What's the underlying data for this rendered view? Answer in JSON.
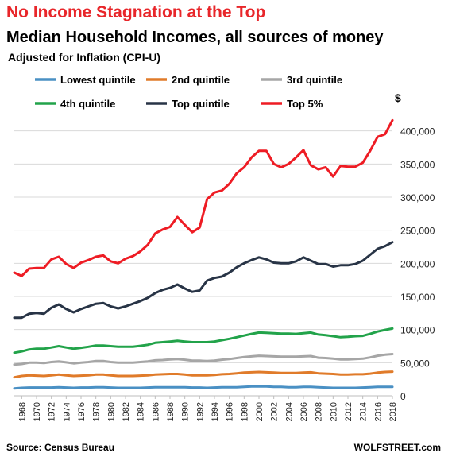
{
  "page": {
    "title": "No Income Stagnation at the Top",
    "subtitle": "Median Household Incomes, all sources of money",
    "subtitle2": "Adjusted for Inflation (CPI-U)",
    "source": "Source: Census Bureau",
    "brand": "WOLFSTREET.com"
  },
  "chart_data": {
    "type": "line",
    "title": "Median Household Incomes, all sources of money",
    "subtitle": "Adjusted for Inflation (CPI-U)",
    "ylabel": "$",
    "ylim": [
      0,
      420000
    ],
    "yticks": [
      0,
      50000,
      100000,
      150000,
      200000,
      250000,
      300000,
      350000,
      400000
    ],
    "ytick_labels": [
      "0",
      "50,000",
      "100,000",
      "150,000",
      "200,000",
      "250,000",
      "300,000",
      "350,000",
      "400,000"
    ],
    "xlim": [
      1967,
      2018
    ],
    "xticks": [
      1968,
      1970,
      1972,
      1974,
      1976,
      1978,
      1980,
      1982,
      1984,
      1986,
      1988,
      1990,
      1992,
      1994,
      1996,
      1998,
      2000,
      2002,
      2004,
      2006,
      2008,
      2010,
      2012,
      2014,
      2016,
      2018
    ],
    "grid": true,
    "legend_position": "top",
    "x": [
      1967,
      1968,
      1969,
      1970,
      1971,
      1972,
      1973,
      1974,
      1975,
      1976,
      1977,
      1978,
      1979,
      1980,
      1981,
      1982,
      1983,
      1984,
      1985,
      1986,
      1987,
      1988,
      1989,
      1990,
      1991,
      1992,
      1993,
      1994,
      1995,
      1996,
      1997,
      1998,
      1999,
      2000,
      2001,
      2002,
      2003,
      2004,
      2005,
      2006,
      2007,
      2008,
      2009,
      2010,
      2011,
      2012,
      2013,
      2014,
      2015,
      2016,
      2017,
      2018
    ],
    "series": [
      {
        "name": "Lowest quintile",
        "color": "#4a90c4",
        "values": [
          11000,
          12000,
          12500,
          12500,
          12500,
          12500,
          13000,
          12500,
          12000,
          12500,
          12500,
          13000,
          13000,
          12500,
          12000,
          12000,
          12000,
          12000,
          12500,
          13000,
          13000,
          13000,
          13000,
          13000,
          12500,
          12500,
          12000,
          12500,
          13000,
          13000,
          13000,
          13500,
          14000,
          14000,
          14000,
          13500,
          13500,
          13000,
          13000,
          13500,
          13500,
          13000,
          12500,
          12000,
          12000,
          12000,
          12000,
          12500,
          13000,
          13500,
          13500,
          13500
        ]
      },
      {
        "name": "2nd quintile",
        "color": "#e07b2a",
        "values": [
          28000,
          30000,
          31000,
          30500,
          30000,
          31000,
          32000,
          31000,
          30000,
          30500,
          31000,
          32000,
          32000,
          31000,
          30000,
          30000,
          30000,
          30500,
          31000,
          32000,
          32500,
          33000,
          33000,
          32000,
          31000,
          31000,
          31000,
          31500,
          32500,
          33000,
          34000,
          35000,
          35500,
          36000,
          35500,
          35000,
          34500,
          34500,
          34500,
          35000,
          35500,
          34000,
          33500,
          33000,
          32000,
          32000,
          32500,
          32500,
          33500,
          35000,
          36000,
          36500
        ]
      },
      {
        "name": "3rd quintile",
        "color": "#a6a6a6",
        "values": [
          47000,
          48000,
          50000,
          50000,
          49500,
          51000,
          52000,
          50500,
          49000,
          50000,
          51000,
          52500,
          52500,
          51000,
          50000,
          50000,
          50000,
          51000,
          52000,
          53500,
          54000,
          55000,
          55500,
          54500,
          53000,
          53000,
          52500,
          53000,
          54500,
          55500,
          57000,
          58500,
          59500,
          60500,
          60000,
          59500,
          59000,
          59000,
          59000,
          59500,
          60000,
          57500,
          57000,
          56000,
          55000,
          55000,
          55500,
          56000,
          58000,
          60500,
          62000,
          63000
        ]
      },
      {
        "name": "4th quintile",
        "color": "#22a34a",
        "values": [
          65000,
          67000,
          70000,
          71000,
          71000,
          73000,
          75000,
          73000,
          71000,
          72500,
          74000,
          76000,
          76000,
          75000,
          74000,
          74000,
          74000,
          75500,
          77000,
          80000,
          81000,
          82000,
          83000,
          82000,
          81000,
          81000,
          81000,
          82000,
          84000,
          86000,
          88500,
          91000,
          93500,
          95500,
          95000,
          94500,
          94000,
          94000,
          93500,
          94500,
          95500,
          92500,
          91500,
          90000,
          88500,
          89000,
          90000,
          90500,
          93500,
          97000,
          99500,
          101500
        ]
      },
      {
        "name": "Top quintile",
        "color": "#283446",
        "values": [
          118000,
          118000,
          124000,
          125000,
          124000,
          133000,
          138000,
          131000,
          126000,
          131000,
          135000,
          139000,
          140000,
          135000,
          132000,
          135000,
          139000,
          143000,
          148000,
          155000,
          160000,
          163000,
          168000,
          162000,
          157000,
          159000,
          174000,
          178000,
          180000,
          186000,
          194000,
          200000,
          205000,
          209000,
          206000,
          201000,
          200000,
          200000,
          203000,
          209000,
          204000,
          199000,
          199000,
          195000,
          197000,
          197000,
          199000,
          204000,
          213000,
          222000,
          226000,
          232000
        ]
      },
      {
        "name": "Top 5%",
        "color": "#ee1c24",
        "values": [
          186000,
          181000,
          192000,
          193000,
          193000,
          206000,
          210000,
          199000,
          193000,
          201000,
          205000,
          210000,
          212000,
          203000,
          200000,
          207000,
          211000,
          218000,
          228000,
          245000,
          251000,
          255000,
          270000,
          258000,
          247000,
          254000,
          297000,
          307000,
          310000,
          320000,
          336000,
          345000,
          360000,
          370000,
          370000,
          350000,
          345000,
          350000,
          360000,
          371000,
          348000,
          342000,
          345000,
          331000,
          347000,
          346000,
          346000,
          352000,
          370000,
          391000,
          395000,
          416000
        ]
      }
    ]
  }
}
